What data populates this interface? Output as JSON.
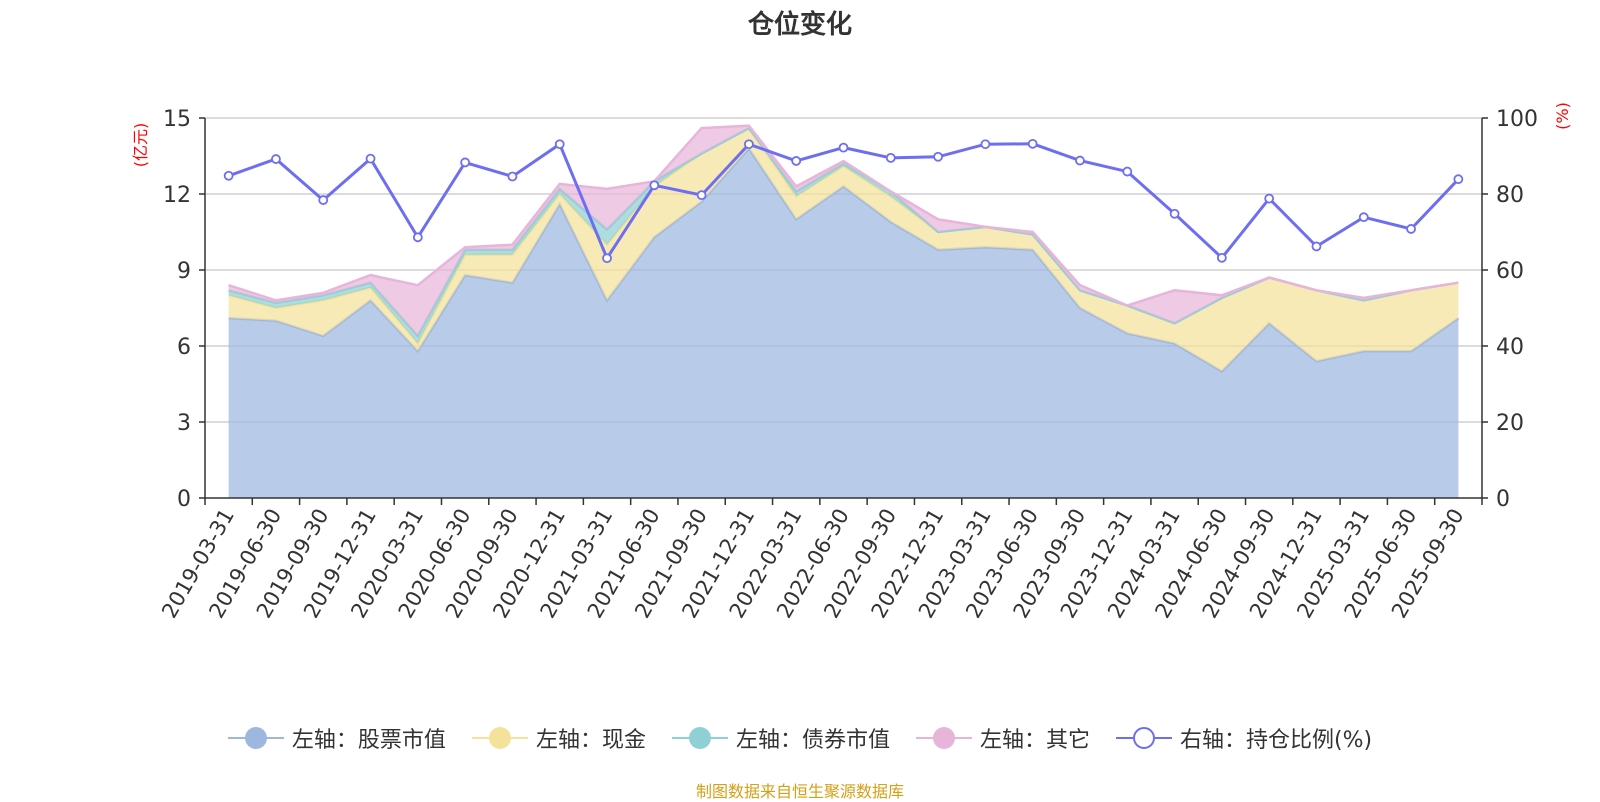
{
  "chart_data": {
    "type": "area",
    "title": "仓位变化",
    "left_axis_unit": "(亿元)",
    "right_axis_unit": "(%)",
    "ylim_left": [
      0,
      15
    ],
    "yticks_left": [
      0,
      3,
      6,
      9,
      12,
      15
    ],
    "ylim_right": [
      0,
      100
    ],
    "yticks_right": [
      0,
      20,
      40,
      60,
      80,
      100
    ],
    "categories": [
      "2019-03-31",
      "2019-06-30",
      "2019-09-30",
      "2019-12-31",
      "2020-03-31",
      "2020-06-30",
      "2020-09-30",
      "2020-12-31",
      "2021-03-31",
      "2021-06-30",
      "2021-09-30",
      "2021-12-31",
      "2022-03-31",
      "2022-06-30",
      "2022-09-30",
      "2022-12-31",
      "2023-03-31",
      "2023-06-30",
      "2023-09-30",
      "2023-12-31",
      "2024-03-31",
      "2024-06-30",
      "2024-09-30",
      "2024-12-31",
      "2025-03-31",
      "2025-06-30",
      "2025-09-30"
    ],
    "series": [
      {
        "name": "左轴：股票市值",
        "axis": "left",
        "color": "#9db7e0",
        "values": [
          7.1,
          7.0,
          6.4,
          7.8,
          5.8,
          8.8,
          8.5,
          11.6,
          7.8,
          10.3,
          11.7,
          13.8,
          11.0,
          12.3,
          10.9,
          9.8,
          9.9,
          9.8,
          7.5,
          6.5,
          6.1,
          5.0,
          6.9,
          5.4,
          5.8,
          5.8,
          7.1
        ]
      },
      {
        "name": "左轴：现金",
        "axis": "left",
        "color": "#f5e29a",
        "values": [
          0.9,
          0.5,
          1.4,
          0.5,
          0.3,
          0.8,
          1.1,
          0.4,
          2.2,
          2.0,
          1.9,
          0.8,
          0.9,
          0.8,
          1.0,
          0.7,
          0.8,
          0.6,
          0.7,
          1.1,
          0.8,
          2.9,
          1.8,
          2.8,
          2.0,
          2.4,
          1.4
        ]
      },
      {
        "name": "左轴：债券市值",
        "axis": "left",
        "color": "#8ed0d4",
        "values": [
          0.2,
          0.2,
          0.2,
          0.2,
          0.3,
          0.2,
          0.2,
          0.2,
          0.6,
          0.2,
          0.0,
          0.0,
          0.2,
          0.1,
          0.2,
          0.0,
          0.0,
          0.0,
          0.0,
          0.0,
          0.0,
          0.0,
          0.0,
          0.0,
          0.0,
          0.0,
          0.0
        ]
      },
      {
        "name": "左轴：其它",
        "axis": "left",
        "color": "#e7b5da",
        "values": [
          0.2,
          0.1,
          0.1,
          0.3,
          2.0,
          0.1,
          0.2,
          0.2,
          1.6,
          0.0,
          1.0,
          0.1,
          0.2,
          0.1,
          0.0,
          0.5,
          0.0,
          0.1,
          0.2,
          0.0,
          1.3,
          0.1,
          0.0,
          0.0,
          0.1,
          0.0,
          0.0
        ]
      },
      {
        "name": "右轴：持仓比例(%)",
        "axis": "right",
        "color": "#6e6ef0",
        "values": [
          84.8,
          89.2,
          78.4,
          89.3,
          68.6,
          88.3,
          84.6,
          93.1,
          63.1,
          82.3,
          79.7,
          93.1,
          88.7,
          92.2,
          89.5,
          89.8,
          93.1,
          93.2,
          88.8,
          85.9,
          74.8,
          63.2,
          78.8,
          66.2,
          73.9,
          70.8,
          83.9
        ]
      }
    ],
    "legend_position": "bottom-center"
  },
  "footer": {
    "credit": "制图数据来自恒生聚源数据库"
  }
}
